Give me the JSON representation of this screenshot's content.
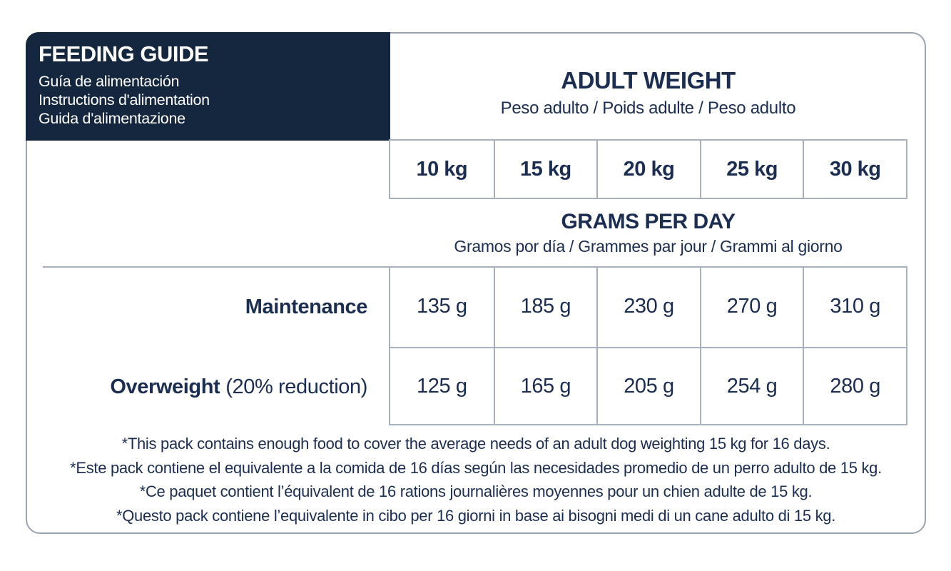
{
  "feeding_guide": {
    "title": "FEEDING GUIDE",
    "subtitles": [
      "Guía de alimentación",
      "Instructions d'alimentation",
      "Guida d'alimentazione"
    ]
  },
  "adult_weight": {
    "title": "ADULT WEIGHT",
    "subtitle": "Peso adulto / Poids adulte / Peso adulto"
  },
  "weights": [
    "10 kg",
    "15 kg",
    "20 kg",
    "25 kg",
    "30 kg"
  ],
  "grams_per_day": {
    "title": "GRAMS PER DAY",
    "subtitle": "Gramos por día / Grammes par jour / Grammi al giorno"
  },
  "rows": [
    {
      "label": "Maintenance",
      "note": "",
      "values": [
        "135 g",
        "185 g",
        "230 g",
        "270 g",
        "310 g"
      ]
    },
    {
      "label": "Overweight",
      "note": "(20% reduction)",
      "values": [
        "125 g",
        "165 g",
        "205 g",
        "254 g",
        "280 g"
      ]
    }
  ],
  "footnotes": [
    "*This pack contains enough food to cover the average needs of an adult dog weighting 15 kg for 16 days.",
    "*Este pack contiene el equivalente a la comida de 16 días según las necesidades promedio de un perro adulto de 15 kg.",
    "*Ce paquet contient l’équivalent de 16 rations journalières moyennes pour un chien adulte de 15 kg.",
    "*Questo pack contiene l’equivalente in cibo per 16 giorni in base ai bisogni medi di un cane adulto di 15 kg."
  ],
  "colors": {
    "navy_bg": "#15263F",
    "text_navy": "#1B2E52",
    "grid_line": "#A6B0BF",
    "card_border": "#99A3AF"
  }
}
